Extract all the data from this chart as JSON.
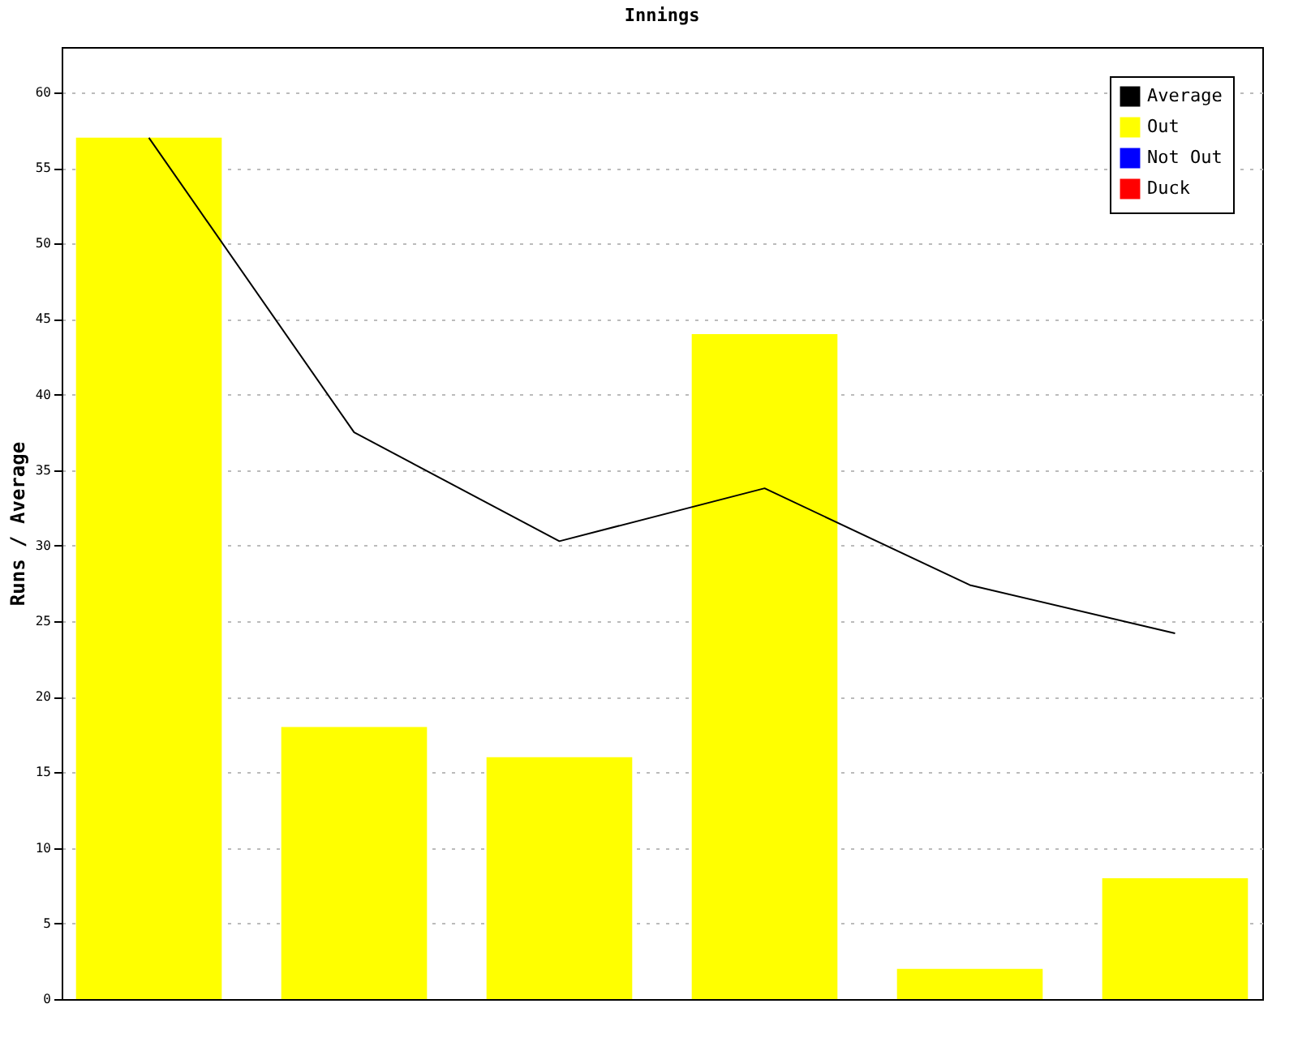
{
  "chart_data": {
    "type": "bar",
    "title": "Innings",
    "ylabel": "Runs / Average",
    "categories": [
      null,
      null,
      null,
      null,
      null,
      null
    ],
    "series": [
      {
        "name": "Average",
        "type": "line",
        "color": "#000000",
        "values": [
          57,
          37.5,
          30.3,
          33.8,
          27.4,
          24.2
        ]
      },
      {
        "name": "Out",
        "color": "#ffff00",
        "values": [
          57,
          18,
          16,
          44,
          2,
          8
        ]
      },
      {
        "name": "Not Out",
        "color": "#0000ff",
        "values": [
          null,
          null,
          null,
          null,
          null,
          null
        ]
      },
      {
        "name": "Duck",
        "color": "#ff0000",
        "values": [
          null,
          null,
          null,
          null,
          null,
          null
        ]
      }
    ],
    "ylim": [
      0,
      63
    ],
    "yticks": [
      0,
      5,
      10,
      15,
      20,
      25,
      30,
      35,
      40,
      45,
      50,
      55,
      60
    ],
    "grid": "y",
    "legend": "top right",
    "tick_labels": "y",
    "marker": "none",
    "line_style": "solid"
  }
}
